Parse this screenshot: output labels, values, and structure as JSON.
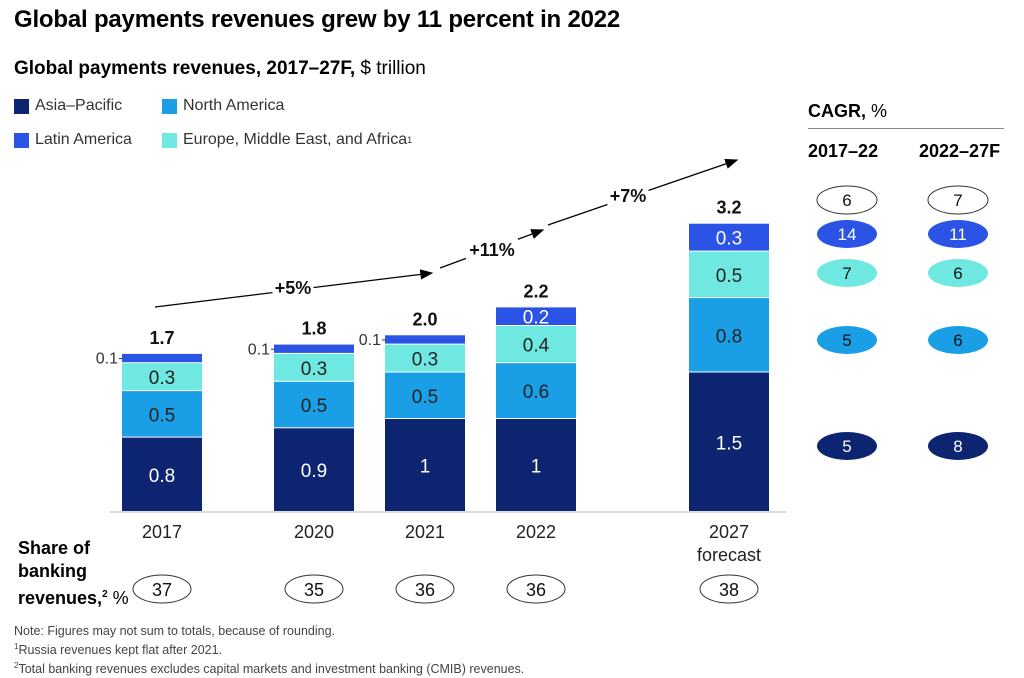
{
  "title": "Global payments revenues grew by 11 percent in 2022",
  "subtitle_bold": "Global payments revenues, 2017–27F,",
  "subtitle_unit": "$ trillion",
  "colors": {
    "asia_pacific": "#0d2470",
    "north_america": "#1a9fe6",
    "latin_america": "#2b54e6",
    "emea": "#6ee8e0"
  },
  "legend": [
    {
      "label": "Asia–Pacific",
      "color": "#0d2470",
      "sup": ""
    },
    {
      "label": "North America",
      "color": "#1a9fe6",
      "sup": ""
    },
    {
      "label": "Latin America",
      "color": "#2b54e6",
      "sup": ""
    },
    {
      "label": "Europe, Middle East, and Africa",
      "color": "#6ee8e0",
      "sup": "1"
    }
  ],
  "chart_data": {
    "type": "bar",
    "stacked": true,
    "categories": [
      "2017",
      "2020",
      "2021",
      "2022",
      "2027 forecast"
    ],
    "series": [
      {
        "name": "Asia–Pacific",
        "values": [
          0.8,
          0.9,
          1.0,
          1.0,
          1.5
        ]
      },
      {
        "name": "North America",
        "values": [
          0.5,
          0.5,
          0.5,
          0.6,
          0.8
        ]
      },
      {
        "name": "Europe, Middle East, and Africa",
        "values": [
          0.3,
          0.3,
          0.3,
          0.4,
          0.5
        ]
      },
      {
        "name": "Latin America",
        "values": [
          0.1,
          0.1,
          0.1,
          0.2,
          0.3
        ]
      }
    ],
    "totals": [
      "1.7",
      "1.8",
      "2.0",
      "2.2",
      "3.2"
    ],
    "growth_labels": [
      "+5%",
      "+11%",
      "+7%"
    ],
    "share_of_banking_revenues": [
      37,
      35,
      36,
      36,
      38
    ]
  },
  "cagr": {
    "title_bold": "CAGR,",
    "title_unit": "%",
    "col_labels": [
      "2017–22",
      "2022–27F"
    ],
    "rows": [
      {
        "region": "Latin America",
        "values": [
          6,
          7
        ]
      },
      {
        "region": "Latin America (blue)",
        "values": [
          14,
          11
        ]
      },
      {
        "region": "Europe, Middle East, and Africa",
        "values": [
          7,
          6
        ]
      },
      {
        "region": "North America",
        "values": [
          5,
          6
        ]
      },
      {
        "region": "Asia–Pacific",
        "values": [
          5,
          8
        ]
      }
    ]
  },
  "share_label": {
    "line1": "Share of",
    "line2": "banking",
    "line3": "revenues,",
    "sup": "2",
    "unit": "%"
  },
  "notes": [
    {
      "sup": "",
      "text": "Note: Figures may not sum to totals, because of rounding."
    },
    {
      "sup": "1",
      "text": "Russia revenues kept flat after 2021."
    },
    {
      "sup": "2",
      "text": "Total banking revenues excludes capital markets and investment banking (CMIB) revenues."
    }
  ]
}
